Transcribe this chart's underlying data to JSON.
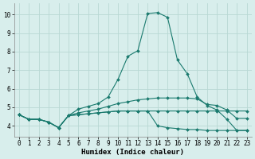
{
  "xlabel": "Humidex (Indice chaleur)",
  "xlim": [
    -0.5,
    23.5
  ],
  "ylim": [
    3.4,
    10.6
  ],
  "xticks": [
    0,
    1,
    2,
    3,
    4,
    5,
    6,
    7,
    8,
    9,
    10,
    11,
    12,
    13,
    14,
    15,
    16,
    17,
    18,
    19,
    20,
    21,
    22,
    23
  ],
  "yticks": [
    4,
    5,
    6,
    7,
    8,
    9,
    10
  ],
  "background_color": "#d8eeec",
  "grid_color": "#b8d8d4",
  "line_color": "#1a7a6e",
  "series": [
    {
      "x": [
        0,
        1,
        2,
        3,
        4,
        5,
        6,
        7,
        8,
        9,
        10,
        11,
        12,
        13,
        14,
        15,
        16,
        17,
        18,
        19,
        20,
        21,
        22,
        23
      ],
      "y": [
        4.6,
        4.35,
        4.35,
        4.2,
        3.9,
        4.55,
        4.9,
        5.05,
        5.2,
        5.55,
        6.5,
        7.75,
        8.05,
        10.05,
        10.1,
        9.85,
        7.55,
        6.8,
        5.55,
        5.1,
        4.85,
        4.35,
        3.75,
        3.75
      ]
    },
    {
      "x": [
        0,
        1,
        2,
        3,
        4,
        5,
        6,
        7,
        8,
        9,
        10,
        11,
        12,
        13,
        14,
        15,
        16,
        17,
        18,
        19,
        20,
        21,
        22,
        23
      ],
      "y": [
        4.6,
        4.35,
        4.35,
        4.2,
        3.9,
        4.55,
        4.7,
        4.8,
        4.9,
        5.05,
        5.2,
        5.3,
        5.4,
        5.45,
        5.5,
        5.5,
        5.5,
        5.5,
        5.45,
        5.15,
        5.1,
        4.85,
        4.4,
        4.4
      ]
    },
    {
      "x": [
        0,
        1,
        2,
        3,
        4,
        5,
        6,
        7,
        8,
        9,
        10,
        11,
        12,
        13,
        14,
        15,
        16,
        17,
        18,
        19,
        20,
        21,
        22,
        23
      ],
      "y": [
        4.6,
        4.35,
        4.35,
        4.2,
        3.9,
        4.55,
        4.6,
        4.65,
        4.7,
        4.75,
        4.8,
        4.8,
        4.8,
        4.8,
        4.0,
        3.9,
        3.85,
        3.8,
        3.8,
        3.75,
        3.75,
        3.75,
        3.75,
        3.75
      ]
    },
    {
      "x": [
        0,
        1,
        2,
        3,
        4,
        5,
        6,
        7,
        8,
        9,
        10,
        11,
        12,
        13,
        14,
        15,
        16,
        17,
        18,
        19,
        20,
        21,
        22,
        23
      ],
      "y": [
        4.6,
        4.35,
        4.35,
        4.2,
        3.9,
        4.55,
        4.6,
        4.65,
        4.7,
        4.75,
        4.8,
        4.8,
        4.8,
        4.8,
        4.8,
        4.8,
        4.8,
        4.8,
        4.8,
        4.8,
        4.8,
        4.8,
        4.8,
        4.8
      ]
    }
  ],
  "marker": "D",
  "marker_size": 2.0,
  "line_width": 0.8,
  "fig_bg": "#d8eeec",
  "spine_color": "#888888",
  "xlabel_fontsize": 6.5,
  "tick_fontsize": 5.5
}
